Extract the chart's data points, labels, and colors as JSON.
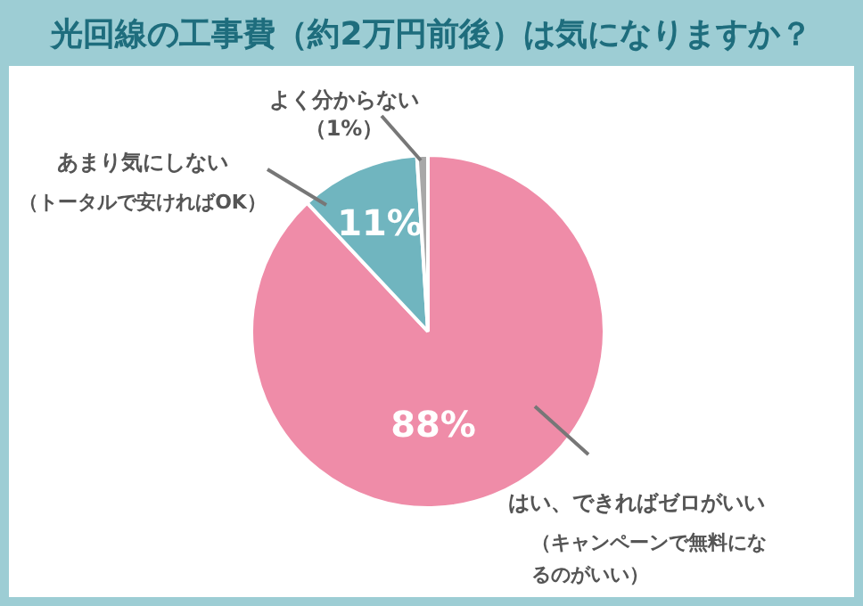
{
  "chart_data": {
    "type": "pie",
    "title": "光回線の工事費（約2万円前後）は気になりますか？",
    "categories": [
      "はい、できればゼロがいい（キャンペーンで無料になるのがいい）",
      "あまり気にしない（トータルで安ければOK）",
      "よく分からない"
    ],
    "values": [
      88,
      11,
      1
    ],
    "colors": [
      "#ef8ca8",
      "#70b5bf",
      "#a8a8a8"
    ],
    "value_labels": [
      "88%",
      "11%",
      "（1%）"
    ],
    "legend": false
  }
}
